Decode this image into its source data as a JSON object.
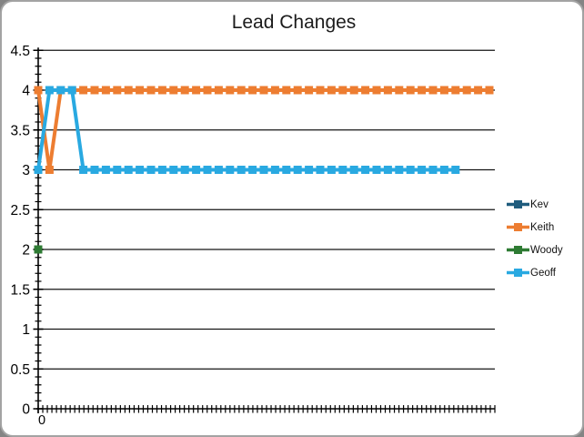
{
  "page": {
    "background_color": "#848484",
    "panel_border_color": "#a3a3a3"
  },
  "chart_data": {
    "type": "line",
    "title": "Lead Changes",
    "legend_position": "right",
    "grid": true,
    "x_axis": {
      "visible_label": "0",
      "tick_count": 101
    },
    "y_axis": {
      "min": 0,
      "max": 4.5,
      "step": 0.5,
      "tick_labels": [
        "0",
        "0.5",
        "1",
        "1.5",
        "2",
        "2.5",
        "3",
        "3.5",
        "4",
        "4.5"
      ]
    },
    "series": [
      {
        "name": "Kev",
        "color": "#1f5c7d",
        "values": []
      },
      {
        "name": "Keith",
        "color": "#ed7d31",
        "values": [
          4,
          3,
          4,
          4,
          4,
          4,
          4,
          4,
          4,
          4,
          4,
          4,
          4,
          4,
          4,
          4,
          4,
          4,
          4,
          4,
          4,
          4,
          4,
          4,
          4,
          4,
          4,
          4,
          4,
          4,
          4,
          4,
          4,
          4,
          4,
          4,
          4,
          4,
          4,
          4,
          4
        ]
      },
      {
        "name": "Woody",
        "color": "#2e7b33",
        "values": [
          2
        ]
      },
      {
        "name": "Geoff",
        "color": "#29a9e1",
        "values": [
          3,
          4,
          4,
          4,
          3,
          3,
          3,
          3,
          3,
          3,
          3,
          3,
          3,
          3,
          3,
          3,
          3,
          3,
          3,
          3,
          3,
          3,
          3,
          3,
          3,
          3,
          3,
          3,
          3,
          3,
          3,
          3,
          3,
          3,
          3,
          3,
          3,
          3
        ]
      }
    ]
  }
}
